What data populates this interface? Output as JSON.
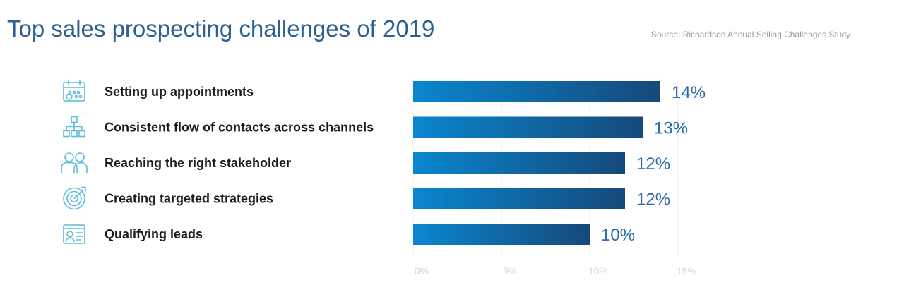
{
  "chart_data": {
    "type": "bar",
    "orientation": "horizontal",
    "title": "Top sales prospecting challenges of 2019",
    "source": "Source: Richardson Annual Selling Challenges Study",
    "categories": [
      "Setting up appointments",
      "Consistent flow of contacts across channels",
      "Reaching the right stakeholder",
      "Creating targeted strategies",
      "Qualifying leads"
    ],
    "icons": [
      "calendar-icon",
      "org-chart-icon",
      "people-icon",
      "target-icon",
      "id-card-icon"
    ],
    "values": [
      14,
      13,
      12,
      12,
      10
    ],
    "data_labels": [
      "14%",
      "13%",
      "12%",
      "12%",
      "10%"
    ],
    "xlim": [
      0,
      15
    ],
    "xticks": [
      "0%",
      "5%",
      "10%",
      "15%"
    ],
    "grid": true,
    "colors": {
      "bar_start": "#0a86cf",
      "bar_end": "#15497a",
      "icon": "#5bbcdc",
      "value": "#2d6aa6",
      "title": "#2d5f8f"
    }
  }
}
